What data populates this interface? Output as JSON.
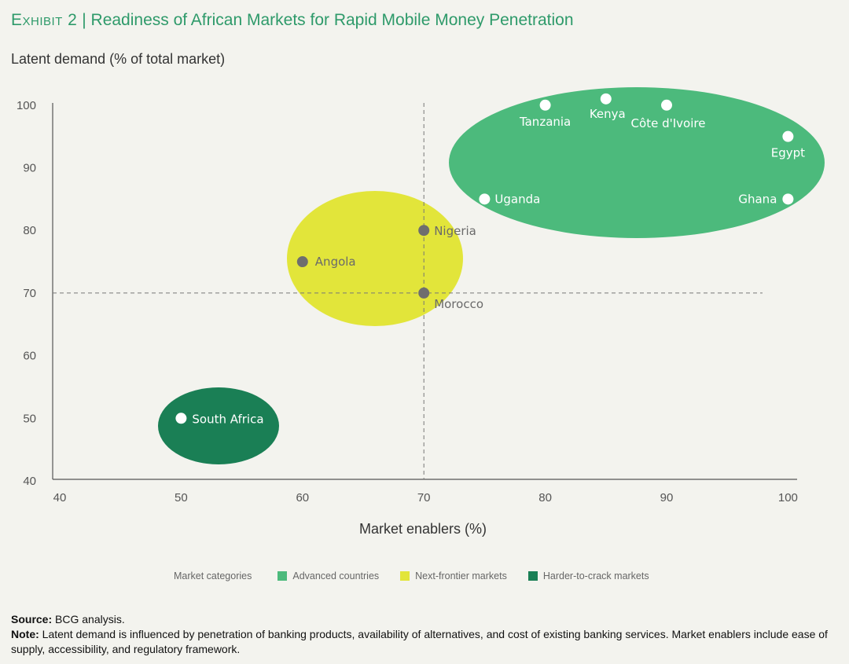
{
  "header": {
    "exhibit": "Exhibit 2",
    "separator": "|",
    "title": "Readiness of African Markets for Rapid Mobile Money Penetration"
  },
  "chart_data": {
    "type": "scatter",
    "title": "Readiness of African Markets for Rapid Mobile Money Penetration",
    "xlabel": "Market enablers (%)",
    "ylabel": "Latent demand (% of total market)",
    "xlim": [
      40,
      100
    ],
    "ylim": [
      40,
      100
    ],
    "xticks": [
      40,
      50,
      60,
      70,
      80,
      90,
      100
    ],
    "yticks": [
      40,
      50,
      60,
      70,
      80,
      90,
      100
    ],
    "reference_lines": {
      "x": 70,
      "y": 70
    },
    "legend_title": "Market categories",
    "legend_placement": "bottom",
    "categories": [
      {
        "name": "Advanced countries",
        "color": "#4cba7c"
      },
      {
        "name": "Next-frontier markets",
        "color": "#e2e53a"
      },
      {
        "name": "Harder-to-crack markets",
        "color": "#1a7f55"
      }
    ],
    "points": [
      {
        "label": "Tanzania",
        "x": 80,
        "y": 100,
        "category": "Advanced countries"
      },
      {
        "label": "Kenya",
        "x": 85,
        "y": 101,
        "category": "Advanced countries"
      },
      {
        "label": "Côte d'Ivoire",
        "x": 90,
        "y": 100,
        "category": "Advanced countries"
      },
      {
        "label": "Egypt",
        "x": 100,
        "y": 95,
        "category": "Advanced countries"
      },
      {
        "label": "Uganda",
        "x": 75,
        "y": 85,
        "category": "Advanced countries"
      },
      {
        "label": "Ghana",
        "x": 100,
        "y": 85,
        "category": "Advanced countries"
      },
      {
        "label": "Nigeria",
        "x": 70,
        "y": 80,
        "category": "Next-frontier markets"
      },
      {
        "label": "Angola",
        "x": 60,
        "y": 75,
        "category": "Next-frontier markets"
      },
      {
        "label": "Morocco",
        "x": 70,
        "y": 70,
        "category": "Next-frontier markets"
      },
      {
        "label": "South Africa",
        "x": 50,
        "y": 50,
        "category": "Harder-to-crack markets"
      }
    ]
  },
  "footer": {
    "source_label": "Source:",
    "source_text": "BCG analysis.",
    "note_label": "Note:",
    "note_text": "Latent demand is influenced by penetration of banking products, availability of alternatives, and cost of existing banking services. Market enablers include ease of supply, accessibility, and regulatory framework."
  }
}
